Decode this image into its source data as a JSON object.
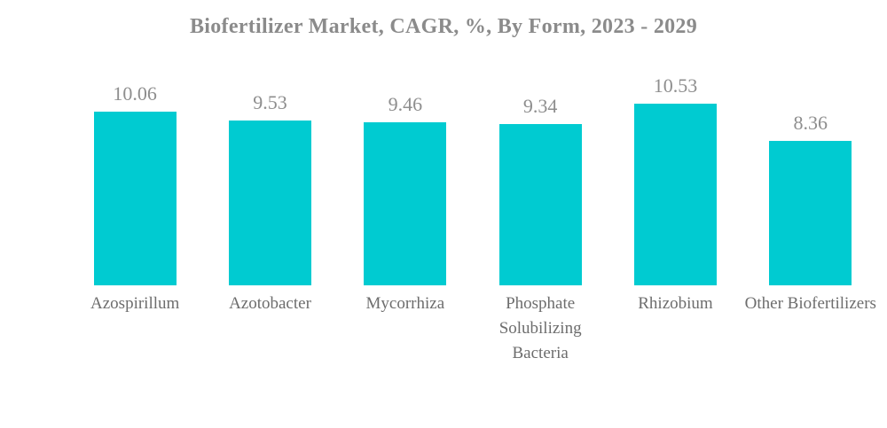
{
  "title": "Biofertilizer Market, CAGR, %, By Form, 2023 - 2029",
  "chart_data": {
    "type": "bar",
    "title": "Biofertilizer Market, CAGR, %, By Form, 2023 - 2029",
    "categories": [
      "Azospirillum",
      "Azotobacter",
      "Mycorrhiza",
      "Phosphate Solubilizing Bacteria",
      "Rhizobium",
      "Other Biofertilizers"
    ],
    "values": [
      10.06,
      9.53,
      9.46,
      9.34,
      10.53,
      8.36
    ],
    "value_labels": [
      "10.06",
      "9.53",
      "9.46",
      "9.34",
      "10.53",
      "8.36"
    ],
    "xlabel": "",
    "ylabel": "",
    "ylim": [
      0,
      11
    ],
    "grid": false,
    "legend": false,
    "data_labels_shown": true,
    "colors": {
      "bar": "#00CBD1",
      "title_text": "#8b8b8b",
      "value_text": "#8e8e8e",
      "category_text": "#6d6d6d",
      "background": "#ffffff"
    }
  }
}
